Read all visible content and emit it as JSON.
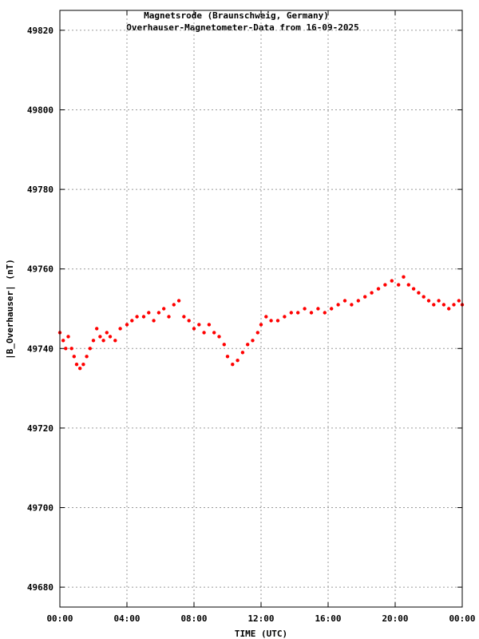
{
  "chart_data": {
    "type": "scatter",
    "title": "Magnetsrode (Braunschweig, Germany)",
    "subtitle": "Overhauser-Magnetometer-Data from 16-09-2025",
    "xlabel": "TIME (UTC)",
    "ylabel": "|B_Overhauser| (nT)",
    "x_ticks": [
      "00:00",
      "04:00",
      "08:00",
      "12:00",
      "16:00",
      "20:00",
      "00:00"
    ],
    "y_ticks": [
      "49680",
      "49700",
      "49720",
      "49740",
      "49760",
      "49780",
      "49800",
      "49820"
    ],
    "xlim_hours": [
      0,
      24
    ],
    "ylim": [
      49675,
      49825
    ],
    "grid": true,
    "series_color": "#ff0000",
    "series": [
      {
        "x_hours": [
          0.0,
          0.2,
          0.35,
          0.5,
          0.7,
          0.85,
          1.0,
          1.2,
          1.4,
          1.6,
          1.8,
          2.0,
          2.2,
          2.4,
          2.6,
          2.8,
          3.0,
          3.3,
          3.6,
          4.0,
          4.3,
          4.6,
          5.0,
          5.3,
          5.6,
          5.9,
          6.2,
          6.5,
          6.8,
          7.1,
          7.4,
          7.7,
          8.0,
          8.3,
          8.6,
          8.9,
          9.2,
          9.5,
          9.8,
          10.0,
          10.3,
          10.6,
          10.9,
          11.2,
          11.5,
          11.8,
          12.0,
          12.3,
          12.6,
          13.0,
          13.4,
          13.8,
          14.2,
          14.6,
          15.0,
          15.4,
          15.8,
          16.2,
          16.6,
          17.0,
          17.4,
          17.8,
          18.2,
          18.6,
          19.0,
          19.4,
          19.8,
          20.2,
          20.5,
          20.8,
          21.1,
          21.4,
          21.7,
          22.0,
          22.3,
          22.6,
          22.9,
          23.2,
          23.5,
          23.8,
          24.0
        ],
        "values": [
          49744,
          49742,
          49740,
          49743,
          49740,
          49738,
          49736,
          49735,
          49736,
          49738,
          49740,
          49742,
          49745,
          49743,
          49742,
          49744,
          49743,
          49742,
          49745,
          49746,
          49747,
          49748,
          49748,
          49749,
          49747,
          49749,
          49750,
          49748,
          49751,
          49752,
          49748,
          49747,
          49745,
          49746,
          49744,
          49746,
          49744,
          49743,
          49741,
          49738,
          49736,
          49737,
          49739,
          49741,
          49742,
          49744,
          49746,
          49748,
          49747,
          49747,
          49748,
          49749,
          49749,
          49750,
          49749,
          49750,
          49749,
          49750,
          49751,
          49752,
          49751,
          49752,
          49753,
          49754,
          49755,
          49756,
          49757,
          49756,
          49758,
          49756,
          49755,
          49754,
          49753,
          49752,
          49751,
          49752,
          49751,
          49750,
          49751,
          49752,
          49751
        ]
      }
    ]
  }
}
